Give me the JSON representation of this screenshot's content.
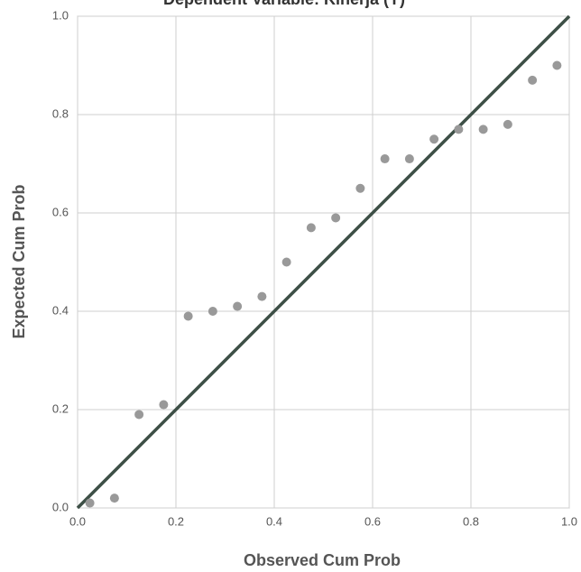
{
  "chart_data": {
    "type": "scatter",
    "title": "Dependent Variable: Kinerja (Y)",
    "xlabel": "Observed Cum Prob",
    "ylabel": "Expected Cum Prob",
    "x": [
      0.025,
      0.075,
      0.125,
      0.175,
      0.225,
      0.275,
      0.325,
      0.375,
      0.425,
      0.475,
      0.525,
      0.575,
      0.625,
      0.675,
      0.725,
      0.775,
      0.825,
      0.875,
      0.925,
      0.975
    ],
    "values": [
      0.01,
      0.02,
      0.19,
      0.21,
      0.39,
      0.4,
      0.41,
      0.43,
      0.5,
      0.57,
      0.59,
      0.65,
      0.71,
      0.71,
      0.75,
      0.77,
      0.77,
      0.78,
      0.87,
      0.9
    ],
    "color": "#999999",
    "diagonal": {
      "x": [
        0,
        1
      ],
      "y": [
        0,
        1
      ],
      "color": "#3d4f46"
    },
    "xlim": [
      0,
      1
    ],
    "ylim": [
      0,
      1
    ],
    "xticks": [
      {
        "value": 0,
        "label": "0.0"
      },
      0.2,
      0.4,
      0.6,
      0.8,
      {
        "value": 1,
        "label": "1.0"
      }
    ],
    "yticks": [
      {
        "value": 0,
        "label": "0.0"
      },
      0.2,
      0.4,
      0.6,
      0.8,
      {
        "value": 1,
        "label": "1.0"
      }
    ],
    "grid": true
  }
}
